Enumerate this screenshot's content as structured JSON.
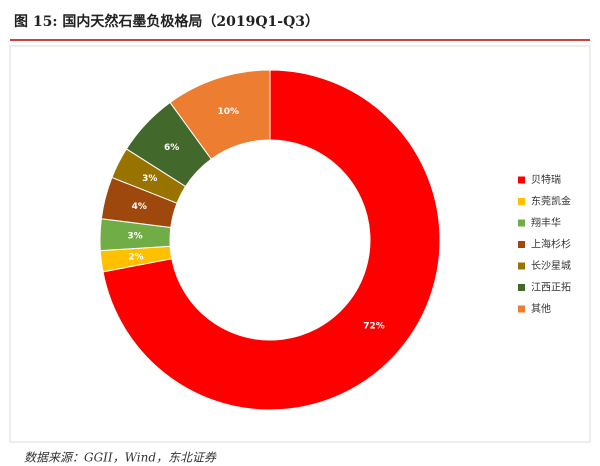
{
  "chart_data": {
    "type": "donut",
    "title": "图 15:  国内天然石墨负极格局（2019Q1-Q3）",
    "categories": [
      "贝特瑞",
      "东莞凯金",
      "翔丰华",
      "上海杉杉",
      "长沙星城",
      "江西正拓",
      "其他"
    ],
    "values": [
      72,
      2,
      3,
      4,
      3,
      6,
      10
    ],
    "value_labels": [
      "72%",
      "2%",
      "3%",
      "4%",
      "3%",
      "6%",
      "10%"
    ],
    "colors": [
      "#ff0000",
      "#ffc000",
      "#70ad47",
      "#9e480e",
      "#997300",
      "#43682b",
      "#ed7d31"
    ],
    "source": "数据来源：GGII，Wind，东北证券"
  }
}
